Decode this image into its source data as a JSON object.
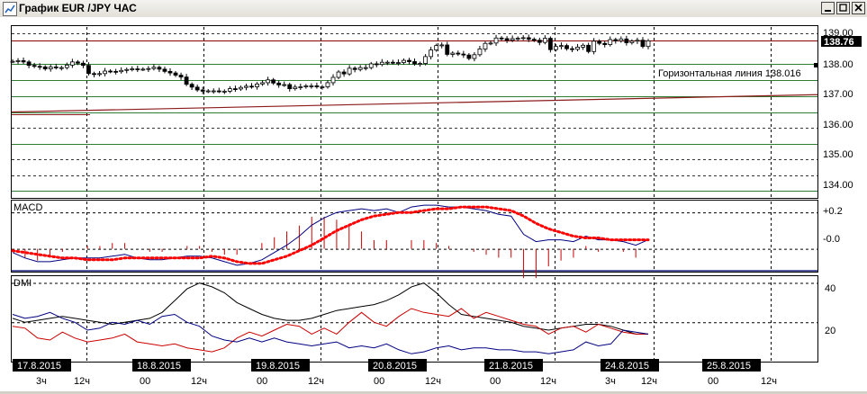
{
  "window": {
    "title": "График EUR /JPY ЧАС"
  },
  "price_axis_labels": [
    "139.00",
    "138.00",
    "137.00",
    "136.00",
    "135.00",
    "134.00"
  ],
  "current_price_label": "138.76",
  "hline_label": "Горизонтальная линия 138.016",
  "macd": {
    "title": "MACD",
    "axis_labels": [
      "+0.2",
      "-0.0"
    ]
  },
  "dmi": {
    "title": "DMI",
    "axis_labels": [
      "40",
      "20"
    ]
  },
  "date_labels": [
    "17.8.2015",
    "18.8.2015",
    "19.8.2015",
    "20.8.2015",
    "21.8.2015",
    "24.8.2015",
    "25.8.2015"
  ],
  "hour_labels": [
    "3ч",
    "12ч",
    "00",
    "12ч",
    "00",
    "12ч",
    "00",
    "12ч",
    "00",
    "12ч",
    "3ч",
    "12ч",
    "00",
    "12ч"
  ],
  "chart_data": [
    {
      "type": "candlestick",
      "symbol": "EUR/JPY",
      "timeframe": "H1",
      "ylim": [
        133.8,
        139.2
      ],
      "close": [
        138.11,
        138.13,
        138.09,
        137.98,
        137.95,
        137.93,
        137.87,
        137.93,
        137.91,
        137.91,
        137.99,
        138.09,
        138.05,
        137.98,
        137.72,
        137.69,
        137.72,
        137.8,
        137.79,
        137.78,
        137.82,
        137.85,
        137.87,
        137.86,
        137.86,
        137.88,
        137.92,
        137.86,
        137.79,
        137.74,
        137.67,
        137.61,
        137.38,
        137.29,
        137.2,
        137.16,
        137.17,
        137.17,
        137.16,
        137.16,
        137.24,
        137.23,
        137.28,
        137.32,
        137.3,
        137.39,
        137.43,
        137.52,
        137.42,
        137.36,
        137.37,
        137.24,
        137.29,
        137.3,
        137.33,
        137.33,
        137.3,
        137.3,
        137.43,
        137.6,
        137.77,
        137.71,
        137.89,
        137.85,
        137.91,
        137.91,
        138.03,
        138.01,
        138.08,
        138.08,
        138.07,
        138.07,
        138.14,
        138.1,
        138.03,
        138.04,
        138.26,
        138.47,
        138.61,
        138.63,
        138.33,
        138.37,
        138.34,
        138.31,
        138.2,
        138.32,
        138.5,
        138.68,
        138.69,
        138.85,
        138.83,
        138.78,
        138.83,
        138.84,
        138.86,
        138.81,
        138.78,
        138.71,
        138.84,
        138.48,
        138.58,
        138.61,
        138.51,
        138.49,
        138.56,
        138.62,
        138.42,
        138.75,
        138.68,
        138.64,
        138.8,
        138.76,
        138.82,
        138.7,
        138.75,
        138.78,
        138.58,
        138.76
      ],
      "open": [
        138.11,
        138.11,
        138.13,
        138.09,
        137.98,
        137.95,
        137.93,
        137.87,
        137.93,
        137.91,
        137.91,
        137.99,
        138.09,
        138.05,
        137.98,
        137.72,
        137.69,
        137.72,
        137.8,
        137.79,
        137.78,
        137.82,
        137.85,
        137.87,
        137.86,
        137.86,
        137.88,
        137.92,
        137.86,
        137.79,
        137.74,
        137.67,
        137.61,
        137.38,
        137.29,
        137.2,
        137.16,
        137.17,
        137.17,
        137.16,
        137.16,
        137.24,
        137.23,
        137.28,
        137.32,
        137.3,
        137.39,
        137.43,
        137.52,
        137.42,
        137.36,
        137.37,
        137.24,
        137.29,
        137.3,
        137.33,
        137.33,
        137.3,
        137.3,
        137.43,
        137.6,
        137.77,
        137.71,
        137.89,
        137.85,
        137.91,
        137.91,
        138.03,
        138.01,
        138.08,
        138.08,
        138.07,
        138.07,
        138.14,
        138.1,
        138.03,
        138.04,
        138.26,
        138.47,
        138.61,
        138.63,
        138.33,
        138.37,
        138.34,
        138.31,
        138.2,
        138.32,
        138.5,
        138.68,
        138.69,
        138.85,
        138.83,
        138.78,
        138.83,
        138.84,
        138.86,
        138.81,
        138.78,
        138.71,
        138.84,
        138.48,
        138.58,
        138.61,
        138.51,
        138.49,
        138.56,
        138.62,
        138.42,
        138.75,
        138.68,
        138.64,
        138.8,
        138.76,
        138.82,
        138.7,
        138.75,
        138.78,
        138.58
      ],
      "horizontal_lines": [
        139.0,
        138.76,
        138.016,
        137.5,
        137.0,
        136.5,
        136.0,
        135.5,
        135.0,
        134.5,
        134.0
      ],
      "trend_line": {
        "from": 136.5,
        "to": 137.05
      }
    },
    {
      "type": "line",
      "name": "MACD",
      "ylim": [
        -0.12,
        0.26
      ],
      "series": [
        {
          "name": "MACD",
          "color": "#000080",
          "values": [
            -0.02,
            -0.05,
            -0.07,
            -0.07,
            -0.06,
            -0.05,
            -0.05,
            -0.05,
            -0.04,
            -0.03,
            -0.05,
            -0.06,
            -0.06,
            -0.05,
            -0.04,
            -0.04,
            -0.05,
            -0.07,
            -0.09,
            -0.08,
            -0.06,
            -0.02,
            0.02,
            0.07,
            0.13,
            0.17,
            0.2,
            0.21,
            0.22,
            0.21,
            0.22,
            0.2,
            0.23,
            0.24,
            0.24,
            0.23,
            0.23,
            0.22,
            0.21,
            0.19,
            0.18,
            0.08,
            0.04,
            0.05,
            0.05,
            0.04,
            0.07,
            0.05,
            0.05,
            0.04,
            0.02,
            0.05
          ]
        },
        {
          "name": "Signal",
          "color": "#ff0000",
          "values": [
            -0.01,
            -0.02,
            -0.03,
            -0.04,
            -0.05,
            -0.05,
            -0.06,
            -0.06,
            -0.06,
            -0.05,
            -0.05,
            -0.05,
            -0.05,
            -0.05,
            -0.05,
            -0.05,
            -0.04,
            -0.05,
            -0.07,
            -0.08,
            -0.08,
            -0.06,
            -0.04,
            -0.01,
            0.02,
            0.06,
            0.1,
            0.13,
            0.16,
            0.18,
            0.19,
            0.2,
            0.2,
            0.21,
            0.22,
            0.22,
            0.23,
            0.23,
            0.23,
            0.22,
            0.21,
            0.18,
            0.14,
            0.11,
            0.09,
            0.07,
            0.06,
            0.06,
            0.05,
            0.05,
            0.05,
            0.05
          ]
        }
      ]
    },
    {
      "type": "line",
      "name": "DMI",
      "ylim": [
        0,
        43
      ],
      "series": [
        {
          "name": "ADX",
          "color": "#000000",
          "values": [
            22,
            20,
            21,
            22,
            23,
            22,
            21,
            20,
            19,
            20,
            21,
            22,
            25,
            31,
            37,
            40,
            38,
            35,
            30,
            27,
            24,
            22,
            21,
            21,
            22,
            24,
            26,
            27,
            28,
            29,
            31,
            34,
            38,
            40,
            35,
            29,
            24,
            23,
            22,
            21,
            20,
            18,
            17,
            16,
            17,
            18,
            19,
            19,
            18,
            16,
            14,
            14
          ]
        },
        {
          "name": "+DI",
          "color": "#cc0000",
          "values": [
            18,
            17,
            12,
            11,
            15,
            12,
            10,
            11,
            12,
            14,
            10,
            9,
            8,
            9,
            7,
            6,
            5,
            7,
            12,
            15,
            13,
            16,
            19,
            18,
            14,
            17,
            14,
            20,
            25,
            20,
            18,
            23,
            27,
            25,
            24,
            23,
            27,
            22,
            25,
            23,
            21,
            19,
            18,
            14,
            17,
            18,
            15,
            19,
            17,
            15,
            14,
            14
          ]
        },
        {
          "name": "-DI",
          "color": "#000080",
          "values": [
            24,
            22,
            23,
            25,
            22,
            20,
            16,
            17,
            20,
            19,
            21,
            19,
            23,
            24,
            20,
            18,
            13,
            11,
            10,
            12,
            10,
            12,
            10,
            9,
            8,
            9,
            10,
            7,
            8,
            7,
            9,
            6,
            4,
            5,
            7,
            8,
            6,
            7,
            7,
            6,
            6,
            5,
            5,
            4,
            5,
            6,
            10,
            8,
            9,
            16,
            15,
            14
          ]
        }
      ]
    }
  ]
}
